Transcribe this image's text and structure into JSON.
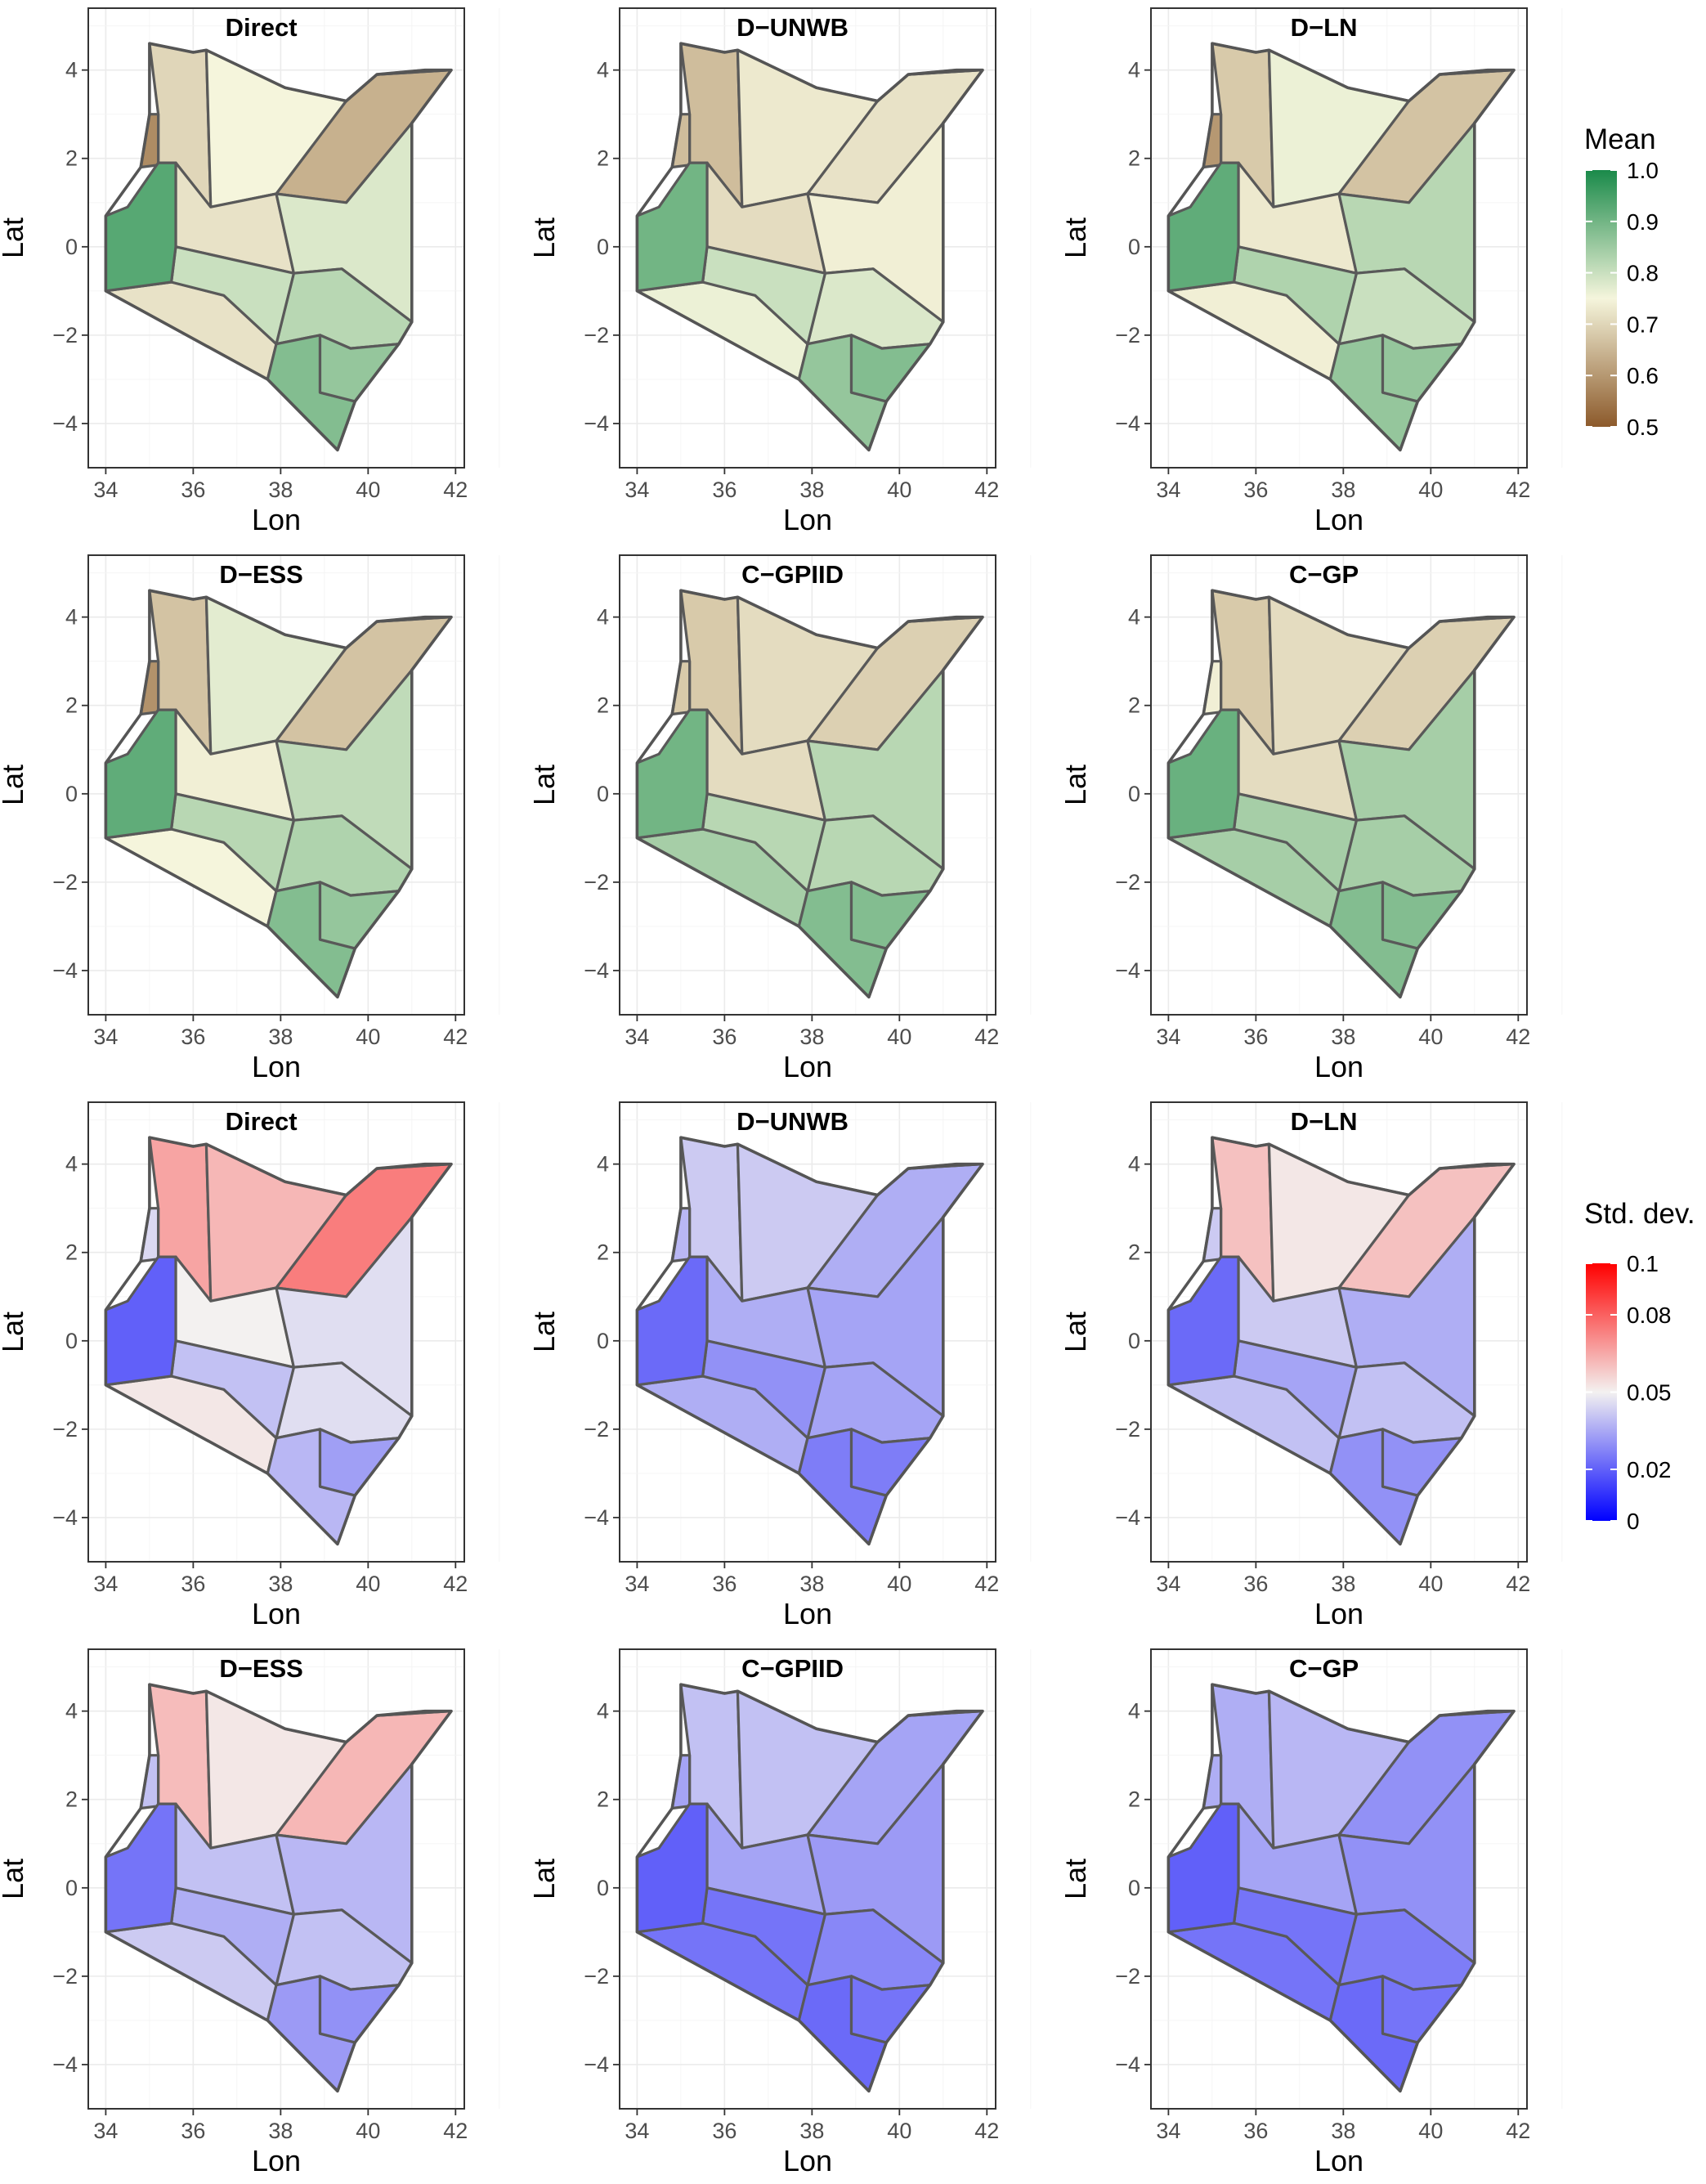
{
  "axes": {
    "xlabel": "Lon",
    "ylabel": "Lat",
    "xlim": [
      33.6,
      42.2
    ],
    "ylim": [
      -5.0,
      5.4
    ],
    "xticks": [
      34,
      36,
      38,
      40,
      42
    ],
    "xtick_labels": [
      "34",
      "36",
      "38",
      "40",
      "42"
    ],
    "yticks": [
      -4,
      -2,
      0,
      2,
      4
    ],
    "ytick_labels": [
      "−4",
      "−2",
      "0",
      "2",
      "4"
    ],
    "grid": "on"
  },
  "legends": [
    {
      "title": "Mean",
      "range": [
        0.5,
        1.0
      ],
      "ticks": [
        1.0,
        0.9,
        0.8,
        0.7,
        0.6,
        0.5
      ],
      "tick_labels": [
        "1.0",
        "0.9",
        "0.8",
        "0.7",
        "0.6",
        "0.5"
      ],
      "colors": {
        "low": "#8c5a2b",
        "mid": "#f5f5dc",
        "high": "#1a8a4a"
      },
      "placement": "right, top half"
    },
    {
      "title": "Std. dev.",
      "range": [
        0.0,
        0.1
      ],
      "ticks": [
        0.1,
        0.08,
        0.05,
        0.02,
        0.0
      ],
      "tick_labels": [
        "0.1",
        "0.08",
        "0.05",
        "0.02",
        "0"
      ],
      "colors": {
        "low": "#0000ff",
        "mid": "#f3f1f0",
        "high": "#ff0000"
      },
      "placement": "right, bottom half"
    }
  ],
  "chart_data": [
    {
      "type": "choropleth",
      "title": "Direct",
      "metric": "Mean",
      "fills": {
        "northwest": 0.7,
        "north": 0.75,
        "northeast": 0.64,
        "northeast_tip": 0.64,
        "west_strip": 0.58,
        "center_north": 0.72,
        "east": 0.78,
        "southeast": 0.82,
        "southwest": 0.72,
        "southcentral": 0.8,
        "south": 0.88,
        "coast": 0.86,
        "highlands": 0.93
      }
    },
    {
      "type": "choropleth",
      "title": "D−UNWB",
      "metric": "Mean",
      "fills": {
        "northwest": 0.66,
        "north": 0.73,
        "northeast": 0.72,
        "northeast_tip": 0.57,
        "west_strip": 0.66,
        "center_north": 0.71,
        "east": 0.74,
        "southeast": 0.78,
        "southwest": 0.76,
        "southcentral": 0.8,
        "south": 0.86,
        "coast": 0.88,
        "highlands": 0.9
      }
    },
    {
      "type": "choropleth",
      "title": "D−LN",
      "metric": "Mean",
      "fills": {
        "northwest": 0.68,
        "north": 0.76,
        "northeast": 0.67,
        "northeast_tip": 0.64,
        "west_strip": 0.6,
        "center_north": 0.73,
        "east": 0.82,
        "southeast": 0.8,
        "southwest": 0.74,
        "southcentral": 0.83,
        "south": 0.86,
        "coast": 0.86,
        "highlands": 0.92
      }
    },
    {
      "type": "choropleth",
      "title": "D−ESS",
      "metric": "Mean",
      "fills": {
        "northwest": 0.67,
        "north": 0.77,
        "northeast": 0.67,
        "northeast_tip": 0.64,
        "west_strip": 0.59,
        "center_north": 0.74,
        "east": 0.81,
        "southeast": 0.83,
        "southwest": 0.75,
        "southcentral": 0.82,
        "south": 0.88,
        "coast": 0.86,
        "highlands": 0.92
      }
    },
    {
      "type": "choropleth",
      "title": "C−GPIID",
      "metric": "Mean",
      "fills": {
        "northwest": 0.68,
        "north": 0.71,
        "northeast": 0.69,
        "northeast_tip": 0.59,
        "west_strip": 0.68,
        "center_north": 0.71,
        "east": 0.82,
        "southeast": 0.82,
        "southwest": 0.84,
        "southcentral": 0.82,
        "south": 0.88,
        "coast": 0.88,
        "highlands": 0.9
      }
    },
    {
      "type": "choropleth",
      "title": "C−GP",
      "metric": "Mean",
      "fills": {
        "northwest": 0.68,
        "north": 0.71,
        "northeast": 0.69,
        "northeast_tip": 0.59,
        "west_strip": 0.74,
        "center_north": 0.71,
        "east": 0.84,
        "southeast": 0.84,
        "southwest": 0.84,
        "southcentral": 0.84,
        "south": 0.88,
        "coast": 0.88,
        "highlands": 0.91
      }
    },
    {
      "type": "choropleth",
      "title": "Direct",
      "metric": "Std. dev.",
      "fills": {
        "northwest": 0.066,
        "north": 0.062,
        "northeast": 0.074,
        "northeast_tip": 0.085,
        "west_strip": 0.045,
        "center_north": 0.05,
        "east": 0.046,
        "southeast": 0.046,
        "southwest": 0.052,
        "southcentral": 0.04,
        "south": 0.038,
        "coast": 0.033,
        "highlands": 0.02
      }
    },
    {
      "type": "choropleth",
      "title": "D−UNWB",
      "metric": "Std. dev.",
      "fills": {
        "northwest": 0.042,
        "north": 0.042,
        "northeast": 0.036,
        "northeast_tip": 0.056,
        "west_strip": 0.038,
        "center_north": 0.036,
        "east": 0.034,
        "southeast": 0.034,
        "southwest": 0.036,
        "southcentral": 0.03,
        "south": 0.026,
        "coast": 0.026,
        "highlands": 0.022
      }
    },
    {
      "type": "choropleth",
      "title": "D−LN",
      "metric": "Std. dev.",
      "fills": {
        "northwest": 0.06,
        "north": 0.052,
        "northeast": 0.06,
        "northeast_tip": 0.072,
        "west_strip": 0.042,
        "center_north": 0.042,
        "east": 0.036,
        "southeast": 0.04,
        "southwest": 0.04,
        "southcentral": 0.034,
        "south": 0.03,
        "coast": 0.03,
        "highlands": 0.022
      }
    },
    {
      "type": "choropleth",
      "title": "D−ESS",
      "metric": "Std. dev.",
      "fills": {
        "northwest": 0.061,
        "north": 0.052,
        "northeast": 0.062,
        "northeast_tip": 0.074,
        "west_strip": 0.04,
        "center_north": 0.04,
        "east": 0.038,
        "southeast": 0.04,
        "southwest": 0.042,
        "southcentral": 0.036,
        "south": 0.032,
        "coast": 0.03,
        "highlands": 0.024
      }
    },
    {
      "type": "choropleth",
      "title": "C−GPIID",
      "metric": "Std. dev.",
      "fills": {
        "northwest": 0.04,
        "north": 0.04,
        "northeast": 0.034,
        "northeast_tip": 0.056,
        "west_strip": 0.034,
        "center_north": 0.034,
        "east": 0.032,
        "southeast": 0.028,
        "southwest": 0.024,
        "southcentral": 0.024,
        "south": 0.022,
        "coast": 0.024,
        "highlands": 0.02
      }
    },
    {
      "type": "choropleth",
      "title": "C−GP",
      "metric": "Std. dev.",
      "fills": {
        "northwest": 0.036,
        "north": 0.038,
        "northeast": 0.03,
        "northeast_tip": 0.056,
        "west_strip": 0.036,
        "center_north": 0.034,
        "east": 0.03,
        "southeast": 0.026,
        "southwest": 0.024,
        "southcentral": 0.024,
        "south": 0.022,
        "coast": 0.024,
        "highlands": 0.02
      }
    }
  ]
}
